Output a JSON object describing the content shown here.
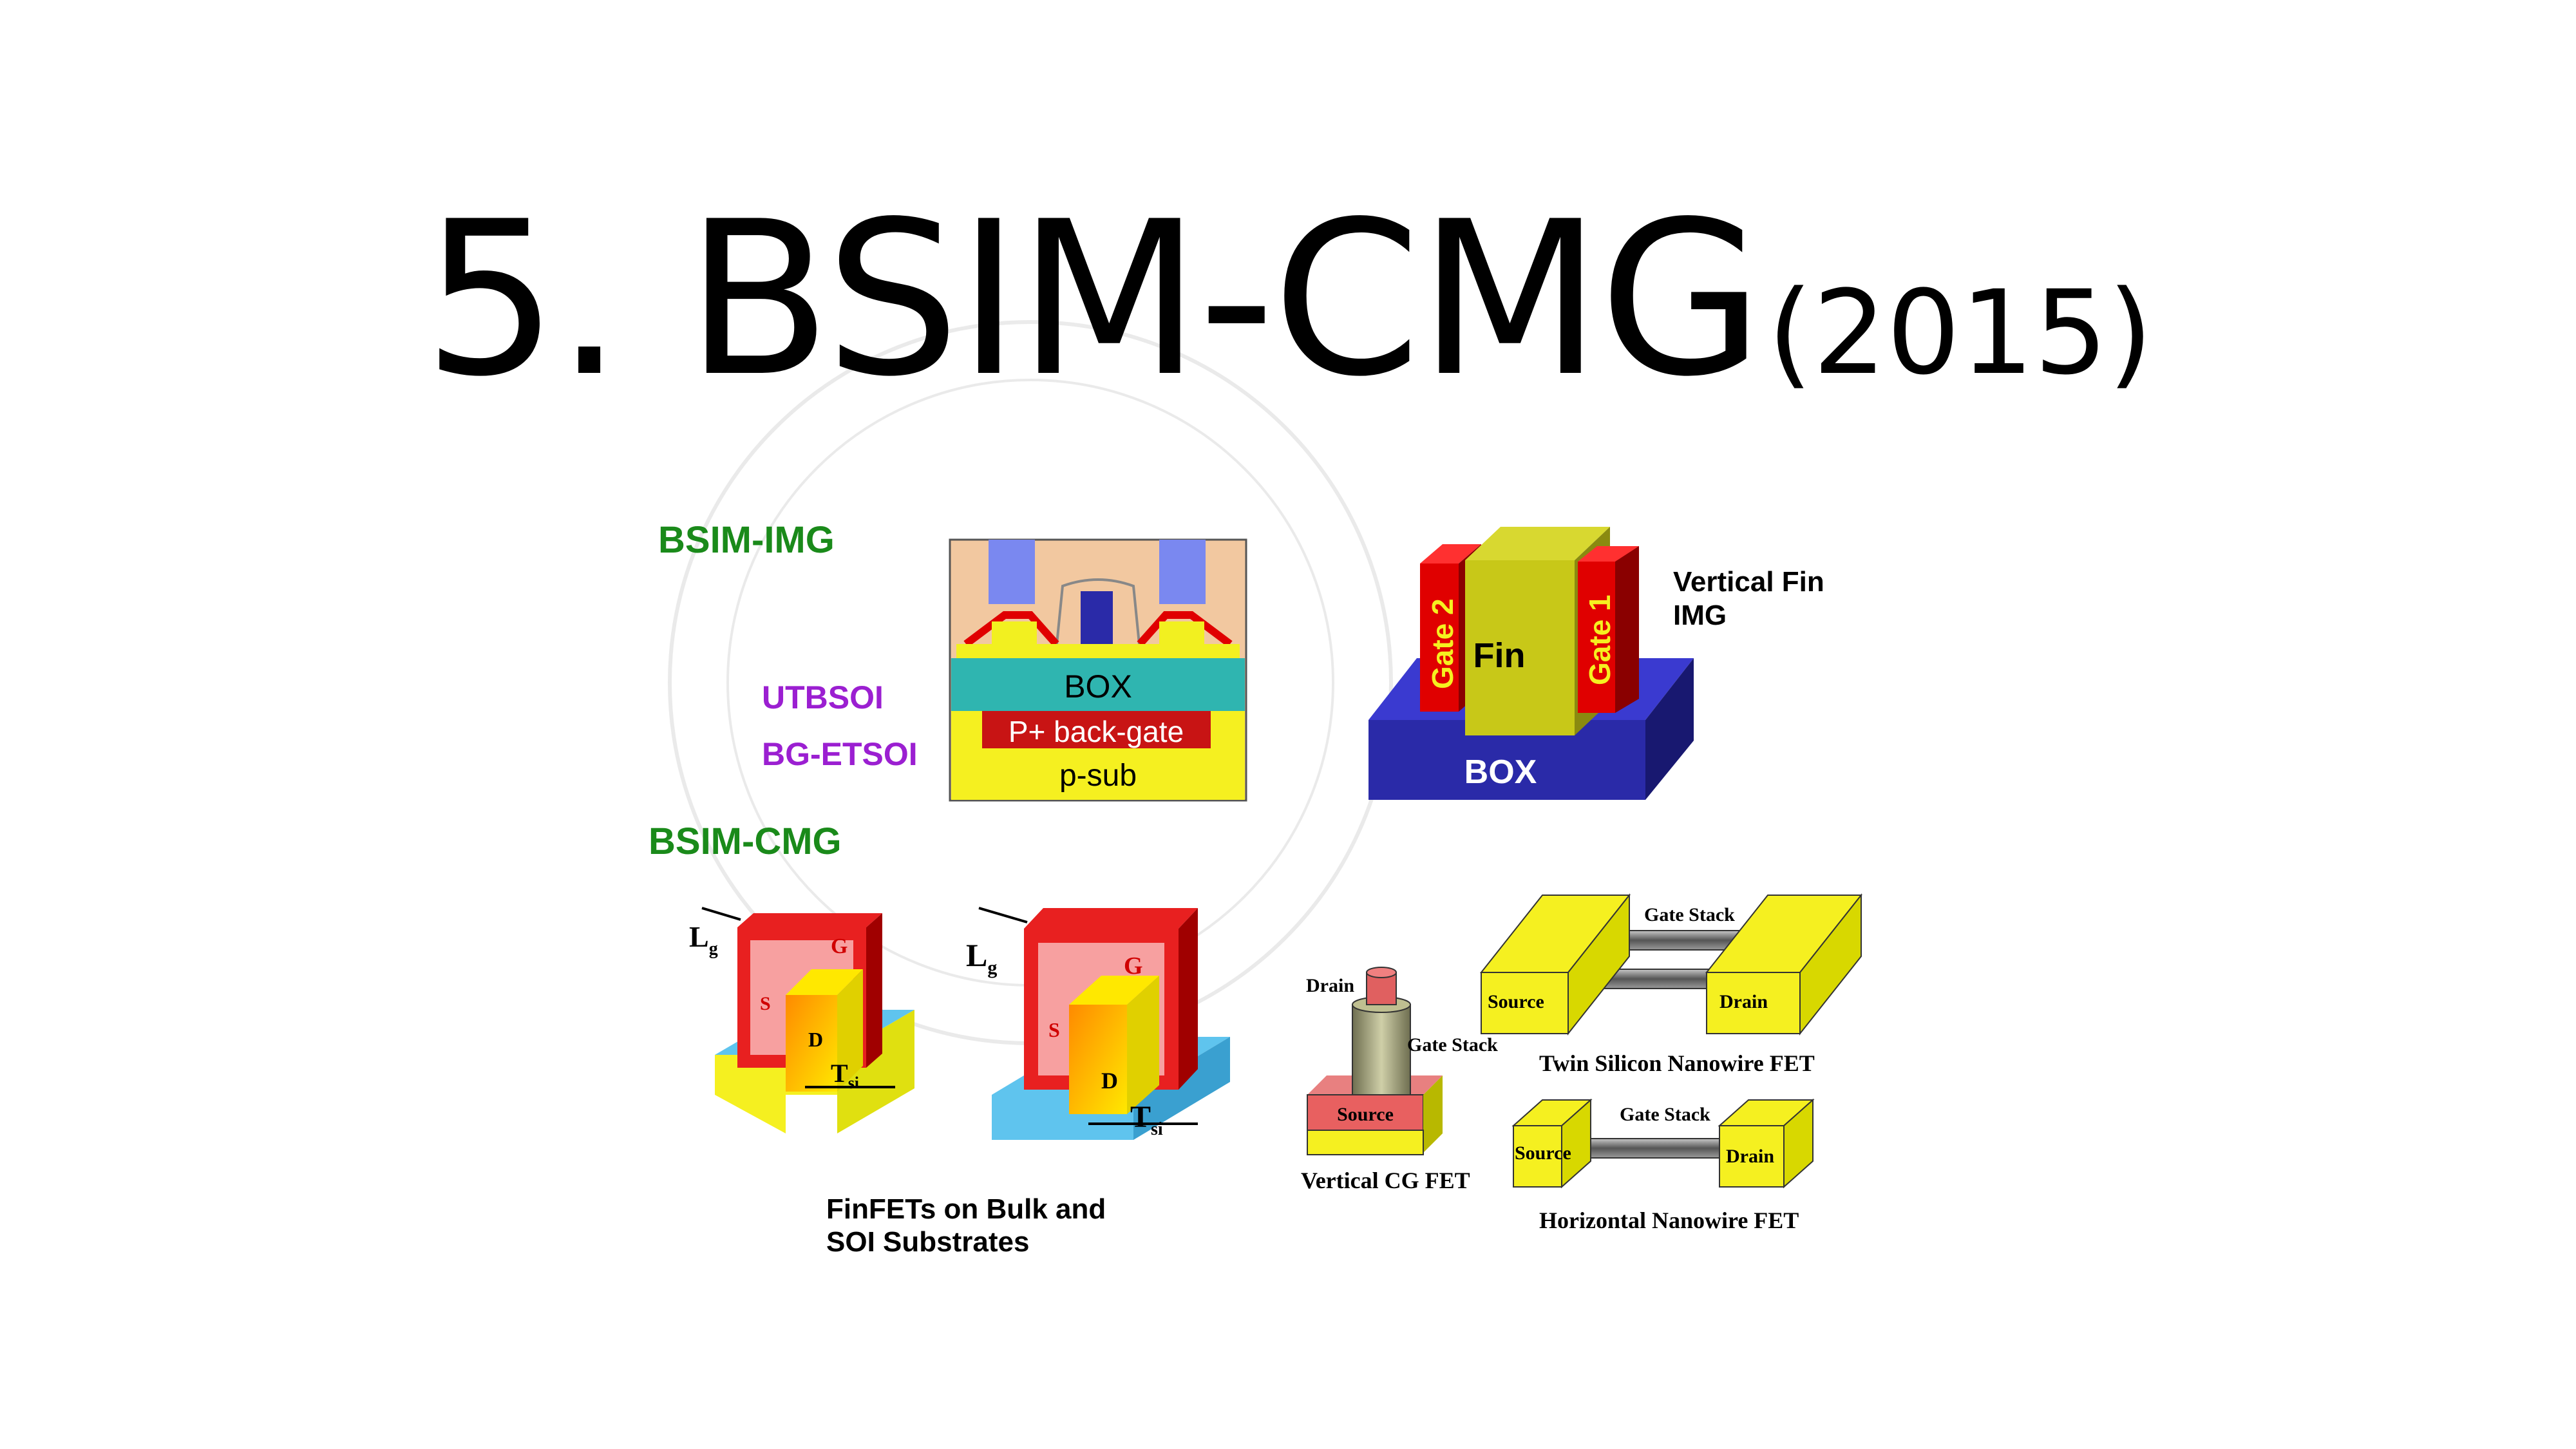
{
  "title": {
    "main": "5. BSIM-CMG",
    "year": "(2015)"
  },
  "colors": {
    "green": "#1a8a1a",
    "purple": "#9b1fd1",
    "gate_red": "#d80000",
    "fin_yellow": "#e8e800",
    "box_blue": "#2a2aa8",
    "oxide_teal": "#2fb5b0",
    "spacer_blue": "#7a88f0",
    "sub_light_blue": "#5fc4ee"
  },
  "img_section": {
    "heading": "BSIM-IMG",
    "tech1": "UTBSOI",
    "tech2": "BG-ETSOI",
    "utbsoi_layers": {
      "box": "BOX",
      "back_gate": "P+ back-gate",
      "sub": "p-sub"
    },
    "vertical_fin": {
      "caption_line1": "Vertical Fin",
      "caption_line2": "IMG",
      "gate2": "Gate 2",
      "fin": "Fin",
      "gate1": "Gate 1",
      "box": "BOX"
    }
  },
  "cmg_section": {
    "heading": "BSIM-CMG",
    "finfet": {
      "caption_line1": "FinFETs on Bulk and",
      "caption_line2": "SOI Substrates",
      "gate": "G",
      "source": "S",
      "drain": "D",
      "lg": "L",
      "lg_sub": "g",
      "tsi": "T",
      "tsi_sub": "si"
    },
    "vertical_cg": {
      "caption": "Vertical CG FET",
      "drain": "Drain",
      "gate_stack": "Gate Stack",
      "source": "Source"
    },
    "twin_nanowire": {
      "caption": "Twin Silicon Nanowire FET",
      "gate_stack": "Gate Stack",
      "source": "Source",
      "drain": "Drain"
    },
    "horizontal_nanowire": {
      "caption": "Horizontal Nanowire FET",
      "gate_stack": "Gate Stack",
      "source": "Source",
      "drain": "Drain"
    }
  }
}
